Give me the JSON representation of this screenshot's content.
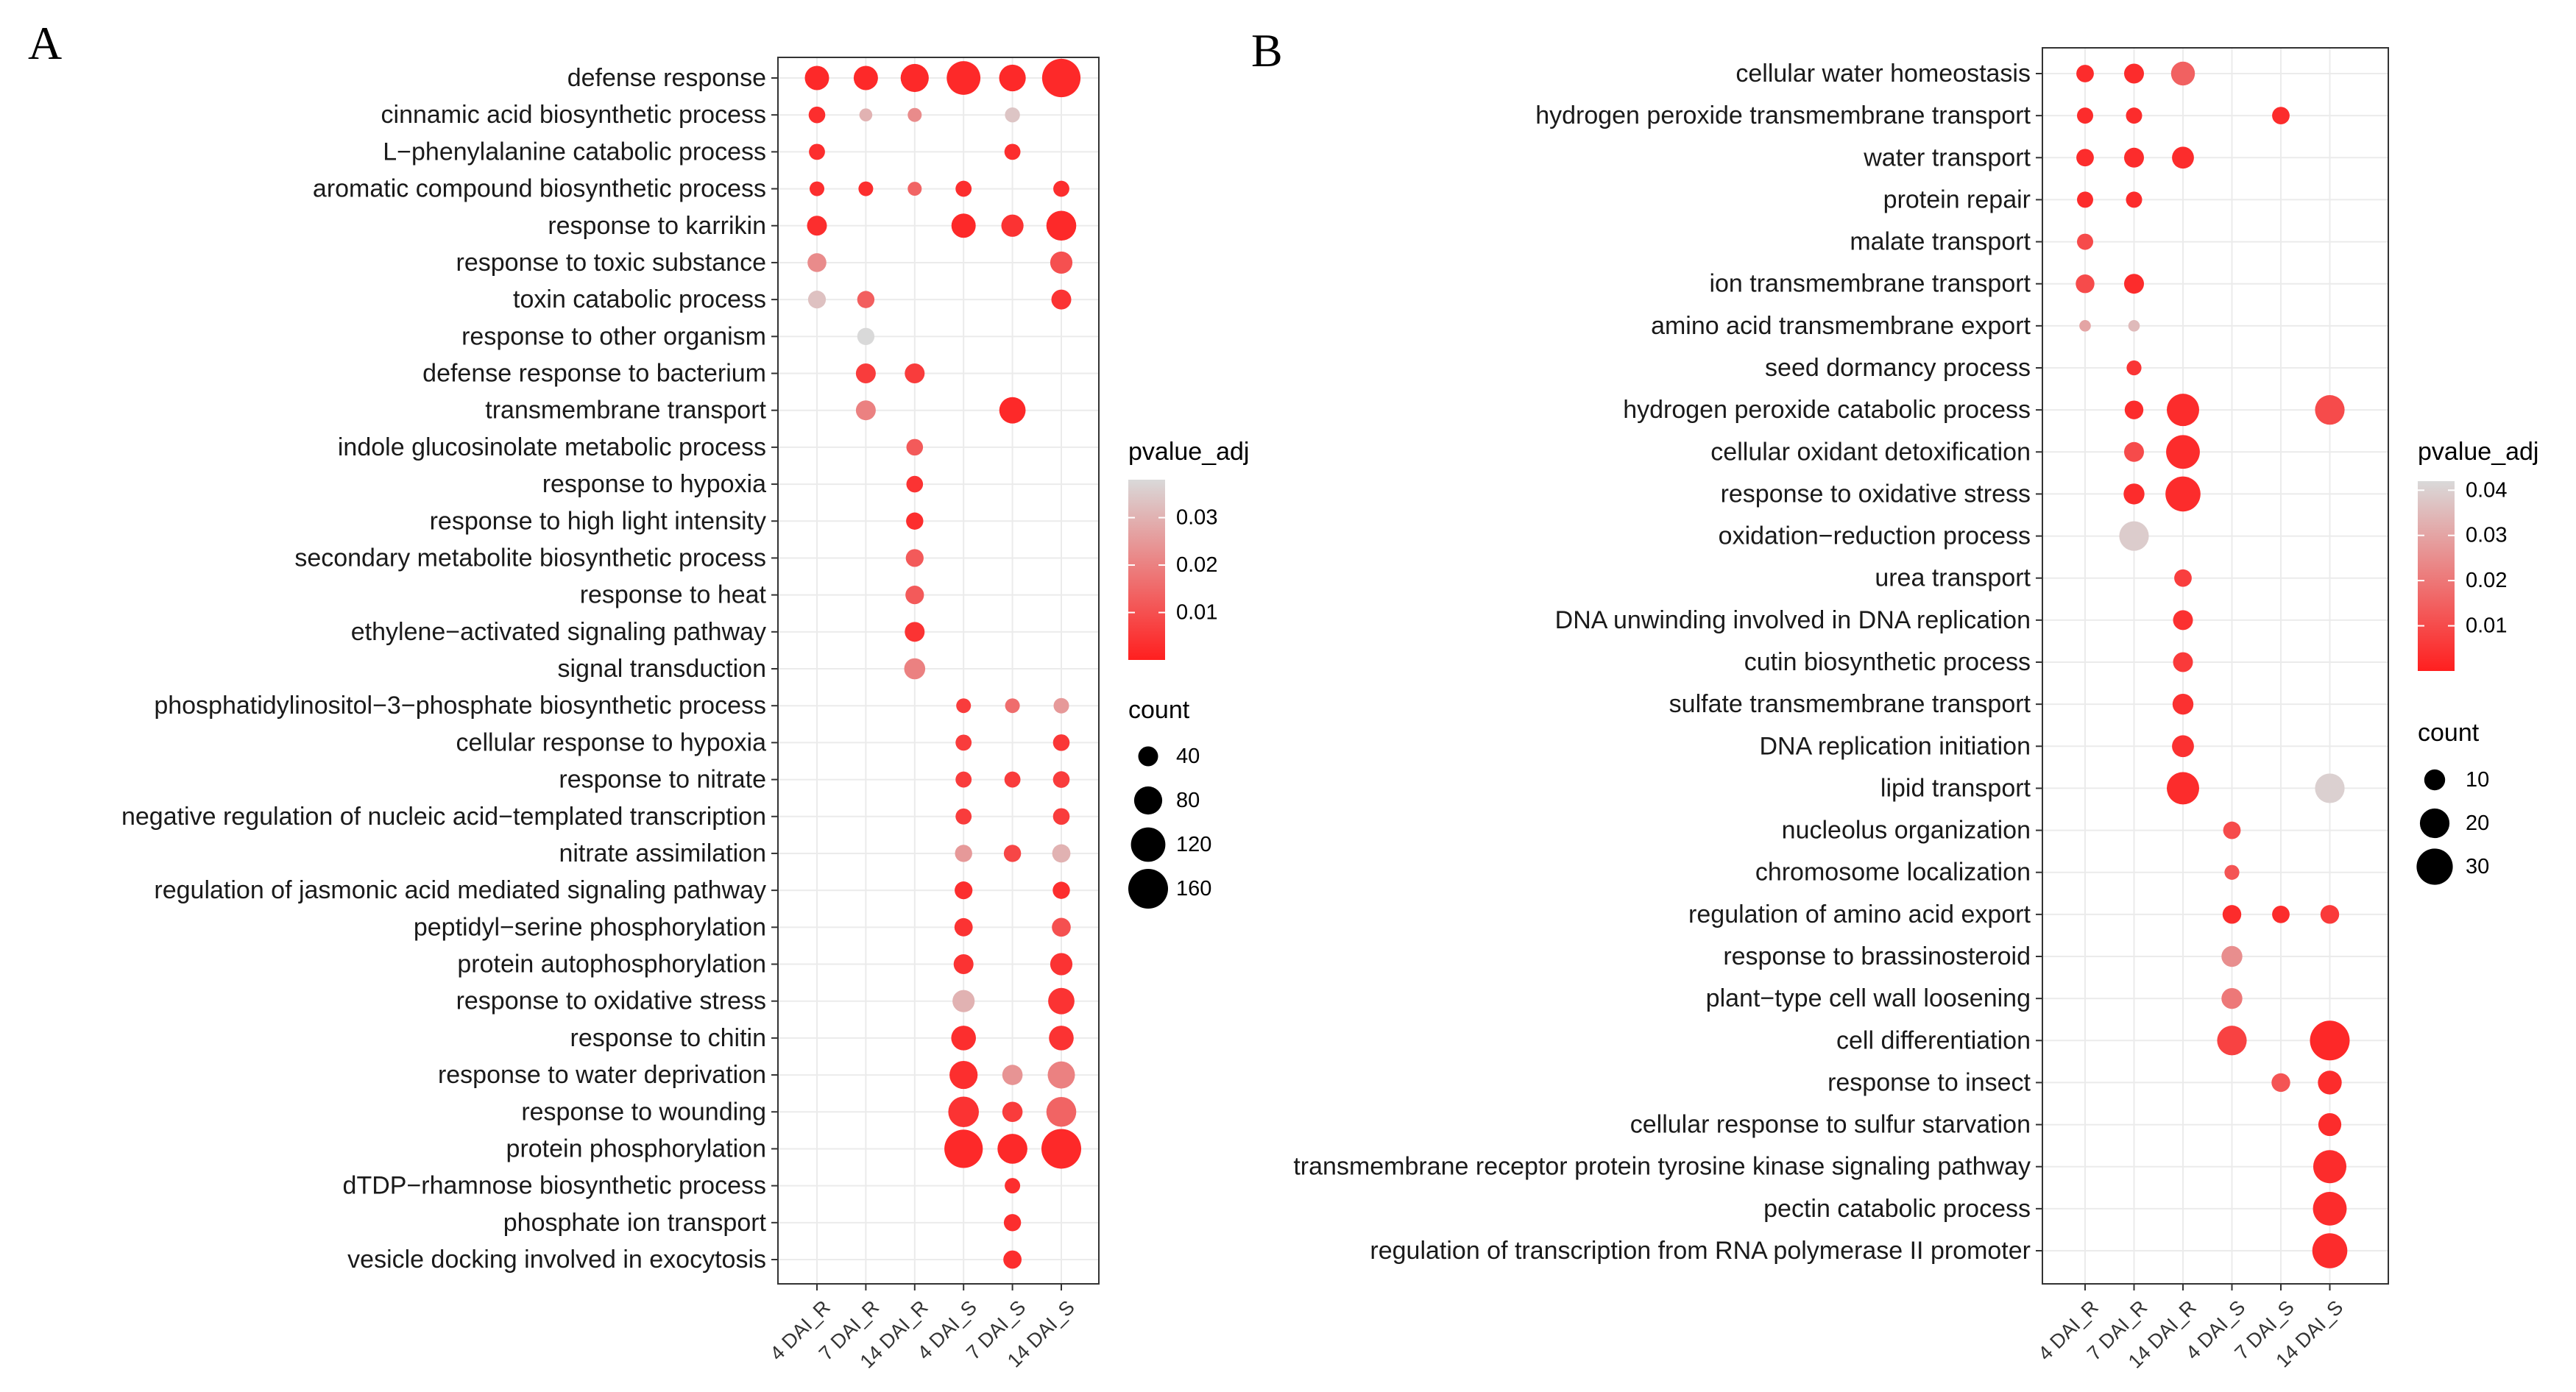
{
  "chart_data": [
    {
      "panel": "A",
      "type": "scatter",
      "subtype": "bubble",
      "x_categories": [
        "4 DAI_R",
        "7 DAI_R",
        "14 DAI_R",
        "4 DAI_S",
        "7 DAI_S",
        "14 DAI_S"
      ],
      "y_terms": [
        "defense response",
        "cinnamic acid biosynthetic process",
        "L−phenylalanine catabolic process",
        "aromatic compound biosynthetic process",
        "response to karrikin",
        "response to toxic substance",
        "toxin catabolic process",
        "response to other organism",
        "defense response to bacterium",
        "transmembrane transport",
        "indole glucosinolate metabolic process",
        "response to hypoxia",
        "response to high light intensity",
        "secondary metabolite biosynthetic process",
        "response to heat",
        "ethylene−activated signaling pathway",
        "signal transduction",
        "phosphatidylinositol−3−phosphate biosynthetic process",
        "cellular response to hypoxia",
        "response to nitrate",
        "negative regulation of nucleic acid−templated transcription",
        "nitrate assimilation",
        "regulation of jasmonic acid mediated signaling pathway",
        "peptidyl−serine phosphorylation",
        "protein autophosphorylation",
        "response to oxidative stress",
        "response to chitin",
        "response to water deprivation",
        "response to wounding",
        "protein phosphorylation",
        "dTDP−rhamnose biosynthetic process",
        "phosphate ion transport",
        "vesicle docking involved in exocytosis"
      ],
      "color_legend": {
        "title": "pvalue_adj",
        "ticks": [
          "0.03",
          "0.02",
          "0.01"
        ],
        "tick_values": [
          0.03,
          0.02,
          0.01
        ],
        "range": [
          0.0,
          0.038
        ]
      },
      "size_legend": {
        "title": "count",
        "ticks": [
          "40",
          "80",
          "120",
          "160"
        ],
        "tick_values": [
          40,
          80,
          120,
          160
        ],
        "max": 160
      },
      "points": [
        {
          "term": 0,
          "x": 0,
          "count": 60,
          "p": 0.002
        },
        {
          "term": 0,
          "x": 1,
          "count": 60,
          "p": 0.002
        },
        {
          "term": 0,
          "x": 2,
          "count": 80,
          "p": 0.002
        },
        {
          "term": 0,
          "x": 3,
          "count": 115,
          "p": 0.002
        },
        {
          "term": 0,
          "x": 4,
          "count": 72,
          "p": 0.002
        },
        {
          "term": 0,
          "x": 5,
          "count": 150,
          "p": 0.002
        },
        {
          "term": 1,
          "x": 0,
          "count": 28,
          "p": 0.003
        },
        {
          "term": 1,
          "x": 1,
          "count": 17,
          "p": 0.03
        },
        {
          "term": 1,
          "x": 2,
          "count": 20,
          "p": 0.022
        },
        {
          "term": 1,
          "x": 4,
          "count": 23,
          "p": 0.034
        },
        {
          "term": 2,
          "x": 0,
          "count": 26,
          "p": 0.003
        },
        {
          "term": 2,
          "x": 4,
          "count": 26,
          "p": 0.003
        },
        {
          "term": 3,
          "x": 0,
          "count": 22,
          "p": 0.003
        },
        {
          "term": 3,
          "x": 1,
          "count": 22,
          "p": 0.003
        },
        {
          "term": 3,
          "x": 2,
          "count": 20,
          "p": 0.014
        },
        {
          "term": 3,
          "x": 3,
          "count": 26,
          "p": 0.003
        },
        {
          "term": 3,
          "x": 5,
          "count": 26,
          "p": 0.003
        },
        {
          "term": 4,
          "x": 0,
          "count": 40,
          "p": 0.003
        },
        {
          "term": 4,
          "x": 3,
          "count": 60,
          "p": 0.002
        },
        {
          "term": 4,
          "x": 4,
          "count": 50,
          "p": 0.004
        },
        {
          "term": 4,
          "x": 5,
          "count": 90,
          "p": 0.002
        },
        {
          "term": 5,
          "x": 0,
          "count": 36,
          "p": 0.022
        },
        {
          "term": 5,
          "x": 5,
          "count": 50,
          "p": 0.01
        },
        {
          "term": 6,
          "x": 0,
          "count": 32,
          "p": 0.033
        },
        {
          "term": 6,
          "x": 1,
          "count": 30,
          "p": 0.013
        },
        {
          "term": 6,
          "x": 5,
          "count": 40,
          "p": 0.004
        },
        {
          "term": 7,
          "x": 1,
          "count": 30,
          "p": 0.038
        },
        {
          "term": 8,
          "x": 1,
          "count": 40,
          "p": 0.006
        },
        {
          "term": 8,
          "x": 2,
          "count": 40,
          "p": 0.006
        },
        {
          "term": 9,
          "x": 1,
          "count": 40,
          "p": 0.02
        },
        {
          "term": 9,
          "x": 4,
          "count": 70,
          "p": 0.002
        },
        {
          "term": 10,
          "x": 2,
          "count": 28,
          "p": 0.012
        },
        {
          "term": 11,
          "x": 2,
          "count": 28,
          "p": 0.004
        },
        {
          "term": 12,
          "x": 2,
          "count": 30,
          "p": 0.003
        },
        {
          "term": 13,
          "x": 2,
          "count": 32,
          "p": 0.012
        },
        {
          "term": 14,
          "x": 2,
          "count": 35,
          "p": 0.012
        },
        {
          "term": 15,
          "x": 2,
          "count": 40,
          "p": 0.004
        },
        {
          "term": 16,
          "x": 2,
          "count": 45,
          "p": 0.02
        },
        {
          "term": 17,
          "x": 3,
          "count": 22,
          "p": 0.006
        },
        {
          "term": 17,
          "x": 4,
          "count": 22,
          "p": 0.016
        },
        {
          "term": 17,
          "x": 5,
          "count": 24,
          "p": 0.025
        },
        {
          "term": 18,
          "x": 3,
          "count": 26,
          "p": 0.006
        },
        {
          "term": 18,
          "x": 5,
          "count": 28,
          "p": 0.005
        },
        {
          "term": 19,
          "x": 3,
          "count": 26,
          "p": 0.006
        },
        {
          "term": 19,
          "x": 4,
          "count": 26,
          "p": 0.006
        },
        {
          "term": 19,
          "x": 5,
          "count": 28,
          "p": 0.006
        },
        {
          "term": 20,
          "x": 3,
          "count": 26,
          "p": 0.006
        },
        {
          "term": 20,
          "x": 5,
          "count": 28,
          "p": 0.006
        },
        {
          "term": 21,
          "x": 3,
          "count": 30,
          "p": 0.025
        },
        {
          "term": 21,
          "x": 4,
          "count": 30,
          "p": 0.008
        },
        {
          "term": 21,
          "x": 5,
          "count": 34,
          "p": 0.03
        },
        {
          "term": 22,
          "x": 3,
          "count": 32,
          "p": 0.003
        },
        {
          "term": 22,
          "x": 5,
          "count": 30,
          "p": 0.003
        },
        {
          "term": 23,
          "x": 3,
          "count": 34,
          "p": 0.004
        },
        {
          "term": 23,
          "x": 5,
          "count": 36,
          "p": 0.01
        },
        {
          "term": 24,
          "x": 3,
          "count": 40,
          "p": 0.004
        },
        {
          "term": 24,
          "x": 5,
          "count": 50,
          "p": 0.004
        },
        {
          "term": 25,
          "x": 3,
          "count": 50,
          "p": 0.03
        },
        {
          "term": 25,
          "x": 5,
          "count": 70,
          "p": 0.004
        },
        {
          "term": 26,
          "x": 3,
          "count": 62,
          "p": 0.003
        },
        {
          "term": 26,
          "x": 5,
          "count": 62,
          "p": 0.004
        },
        {
          "term": 27,
          "x": 3,
          "count": 80,
          "p": 0.003
        },
        {
          "term": 27,
          "x": 4,
          "count": 42,
          "p": 0.024
        },
        {
          "term": 27,
          "x": 5,
          "count": 75,
          "p": 0.02
        },
        {
          "term": 28,
          "x": 3,
          "count": 95,
          "p": 0.004
        },
        {
          "term": 28,
          "x": 4,
          "count": 42,
          "p": 0.006
        },
        {
          "term": 28,
          "x": 5,
          "count": 90,
          "p": 0.014
        },
        {
          "term": 29,
          "x": 3,
          "count": 150,
          "p": 0.002
        },
        {
          "term": 29,
          "x": 4,
          "count": 90,
          "p": 0.002
        },
        {
          "term": 29,
          "x": 5,
          "count": 160,
          "p": 0.002
        },
        {
          "term": 30,
          "x": 4,
          "count": 24,
          "p": 0.003
        },
        {
          "term": 31,
          "x": 4,
          "count": 30,
          "p": 0.003
        },
        {
          "term": 32,
          "x": 4,
          "count": 34,
          "p": 0.003
        }
      ]
    },
    {
      "panel": "B",
      "type": "scatter",
      "subtype": "bubble",
      "x_categories": [
        "4 DAI_R",
        "7 DAI_R",
        "14 DAI_R",
        "4 DAI_S",
        "7 DAI_S",
        "14 DAI_S"
      ],
      "y_terms": [
        "cellular water homeostasis",
        "hydrogen peroxide transmembrane transport",
        "water transport",
        "protein repair",
        "malate transport",
        "ion transmembrane transport",
        "amino acid transmembrane export",
        "seed dormancy process",
        "hydrogen peroxide catabolic process",
        "cellular oxidant detoxification",
        "response to oxidative stress",
        "oxidation−reduction process",
        "urea transport",
        "DNA unwinding involved in DNA replication",
        "cutin biosynthetic process",
        "sulfate transmembrane transport",
        "DNA replication initiation",
        "lipid transport",
        "nucleolus organization",
        "chromosome localization",
        "regulation of amino acid export",
        "response to brassinosteroid",
        "plant−type cell wall loosening",
        "cell differentiation",
        "response to insect",
        "cellular response to sulfur starvation",
        "transmembrane receptor protein tyrosine kinase signaling pathway",
        "pectin catabolic process",
        "regulation of transcription from RNA polymerase II promoter"
      ],
      "color_legend": {
        "title": "pvalue_adj",
        "ticks": [
          "0.04",
          "0.03",
          "0.02",
          "0.01"
        ],
        "tick_values": [
          0.04,
          0.03,
          0.02,
          0.01
        ],
        "range": [
          0.0,
          0.042
        ]
      },
      "size_legend": {
        "title": "count",
        "ticks": [
          "10",
          "20",
          "30"
        ],
        "tick_values": [
          10,
          20,
          30
        ],
        "max": 36
      },
      "points": [
        {
          "term": 0,
          "x": 0,
          "count": 7,
          "p": 0.003
        },
        {
          "term": 0,
          "x": 1,
          "count": 9,
          "p": 0.003
        },
        {
          "term": 0,
          "x": 2,
          "count": 13,
          "p": 0.015
        },
        {
          "term": 1,
          "x": 0,
          "count": 6,
          "p": 0.003
        },
        {
          "term": 1,
          "x": 1,
          "count": 6,
          "p": 0.003
        },
        {
          "term": 1,
          "x": 4,
          "count": 7,
          "p": 0.003
        },
        {
          "term": 2,
          "x": 0,
          "count": 7,
          "p": 0.003
        },
        {
          "term": 2,
          "x": 1,
          "count": 9,
          "p": 0.003
        },
        {
          "term": 2,
          "x": 2,
          "count": 11,
          "p": 0.003
        },
        {
          "term": 3,
          "x": 0,
          "count": 6,
          "p": 0.003
        },
        {
          "term": 3,
          "x": 1,
          "count": 6,
          "p": 0.003
        },
        {
          "term": 4,
          "x": 0,
          "count": 6,
          "p": 0.01
        },
        {
          "term": 5,
          "x": 0,
          "count": 8,
          "p": 0.01
        },
        {
          "term": 5,
          "x": 1,
          "count": 9,
          "p": 0.003
        },
        {
          "term": 6,
          "x": 0,
          "count": 3,
          "p": 0.03
        },
        {
          "term": 6,
          "x": 1,
          "count": 3,
          "p": 0.035
        },
        {
          "term": 7,
          "x": 1,
          "count": 5,
          "p": 0.005
        },
        {
          "term": 8,
          "x": 1,
          "count": 8,
          "p": 0.003
        },
        {
          "term": 8,
          "x": 2,
          "count": 24,
          "p": 0.003
        },
        {
          "term": 8,
          "x": 5,
          "count": 20,
          "p": 0.01
        },
        {
          "term": 9,
          "x": 1,
          "count": 9,
          "p": 0.01
        },
        {
          "term": 9,
          "x": 2,
          "count": 26,
          "p": 0.003
        },
        {
          "term": 10,
          "x": 1,
          "count": 10,
          "p": 0.003
        },
        {
          "term": 10,
          "x": 2,
          "count": 28,
          "p": 0.003
        },
        {
          "term": 11,
          "x": 1,
          "count": 20,
          "p": 0.039
        },
        {
          "term": 12,
          "x": 2,
          "count": 7,
          "p": 0.007
        },
        {
          "term": 13,
          "x": 2,
          "count": 9,
          "p": 0.004
        },
        {
          "term": 14,
          "x": 2,
          "count": 9,
          "p": 0.006
        },
        {
          "term": 15,
          "x": 2,
          "count": 10,
          "p": 0.004
        },
        {
          "term": 16,
          "x": 2,
          "count": 11,
          "p": 0.004
        },
        {
          "term": 17,
          "x": 2,
          "count": 24,
          "p": 0.003
        },
        {
          "term": 17,
          "x": 5,
          "count": 20,
          "p": 0.04
        },
        {
          "term": 18,
          "x": 3,
          "count": 7,
          "p": 0.01
        },
        {
          "term": 19,
          "x": 3,
          "count": 5,
          "p": 0.012
        },
        {
          "term": 20,
          "x": 3,
          "count": 8,
          "p": 0.003
        },
        {
          "term": 20,
          "x": 4,
          "count": 7,
          "p": 0.003
        },
        {
          "term": 20,
          "x": 5,
          "count": 8,
          "p": 0.006
        },
        {
          "term": 21,
          "x": 3,
          "count": 10,
          "p": 0.025
        },
        {
          "term": 22,
          "x": 3,
          "count": 10,
          "p": 0.02
        },
        {
          "term": 23,
          "x": 3,
          "count": 20,
          "p": 0.008
        },
        {
          "term": 23,
          "x": 5,
          "count": 36,
          "p": 0.002
        },
        {
          "term": 24,
          "x": 4,
          "count": 8,
          "p": 0.012
        },
        {
          "term": 24,
          "x": 5,
          "count": 13,
          "p": 0.003
        },
        {
          "term": 25,
          "x": 5,
          "count": 12,
          "p": 0.003
        },
        {
          "term": 26,
          "x": 5,
          "count": 25,
          "p": 0.003
        },
        {
          "term": 27,
          "x": 5,
          "count": 26,
          "p": 0.003
        },
        {
          "term": 28,
          "x": 5,
          "count": 28,
          "p": 0.003
        }
      ]
    }
  ]
}
